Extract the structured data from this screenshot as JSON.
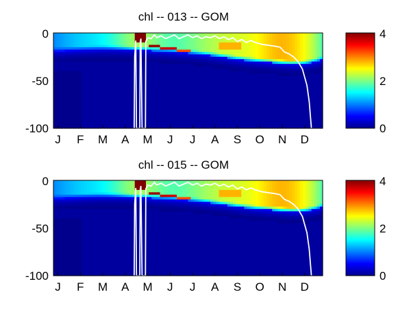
{
  "figure": {
    "background": "#ffffff"
  },
  "chart_data": [
    {
      "type": "heatmap",
      "title": "chl -- 013 -- GOM",
      "xlabel": "",
      "ylabel": "",
      "x_tick_labels": [
        "J",
        "F",
        "M",
        "A",
        "M",
        "J",
        "J",
        "A",
        "S",
        "O",
        "N",
        "D"
      ],
      "y_ticks": [
        0,
        -50,
        -100
      ],
      "y_tick_labels": [
        "0",
        "-50",
        "-100"
      ],
      "ylim": [
        -100,
        0
      ],
      "xlim_months": [
        0,
        12
      ],
      "grid": false,
      "colormap": "jet",
      "clim": [
        0,
        4
      ],
      "colorbar": {
        "ticks": [
          0,
          2,
          4
        ],
        "tick_labels": [
          "0",
          "2",
          "4"
        ]
      },
      "bloom_spikes": [
        {
          "start": 3.65,
          "end": 4.15,
          "top": 0,
          "bottom": -9,
          "value": 4
        },
        {
          "start": 4.2,
          "end": 4.7,
          "top": -12,
          "bottom": -15,
          "value": 3.9
        },
        {
          "start": 4.7,
          "end": 5.5,
          "top": -15,
          "bottom": -18,
          "value": 3.7
        },
        {
          "start": 5.5,
          "end": 6.1,
          "top": -17,
          "bottom": -20,
          "value": 3.2
        },
        {
          "start": 7.4,
          "end": 8.4,
          "top": -10,
          "bottom": -18,
          "value": 2.8
        }
      ],
      "contour": [
        [
          3.6,
          -100
        ],
        [
          3.62,
          -25
        ],
        [
          3.67,
          -8
        ],
        [
          3.7,
          -100
        ],
        [
          3.85,
          -100
        ],
        [
          3.87,
          -10
        ],
        [
          3.9,
          -6
        ],
        [
          3.95,
          -100
        ],
        [
          4.1,
          -100
        ],
        [
          4.12,
          -9
        ],
        [
          4.2,
          -5
        ],
        [
          4.35,
          -6
        ],
        [
          4.5,
          -2
        ],
        [
          4.6,
          -5
        ],
        [
          4.8,
          -3
        ],
        [
          5.0,
          -6
        ],
        [
          5.2,
          -4
        ],
        [
          5.4,
          -2
        ],
        [
          5.6,
          -6
        ],
        [
          5.8,
          -4
        ],
        [
          6.0,
          -2
        ],
        [
          6.2,
          -5
        ],
        [
          6.4,
          -3
        ],
        [
          6.6,
          -6
        ],
        [
          6.8,
          -4
        ],
        [
          7.0,
          -5
        ],
        [
          7.2,
          -3
        ],
        [
          7.4,
          -6
        ],
        [
          7.6,
          -4
        ],
        [
          7.8,
          -7
        ],
        [
          8.0,
          -5
        ],
        [
          8.2,
          -9
        ],
        [
          8.4,
          -7
        ],
        [
          8.6,
          -10
        ],
        [
          8.8,
          -8
        ],
        [
          9.0,
          -10
        ],
        [
          9.3,
          -12
        ],
        [
          9.6,
          -13
        ],
        [
          9.9,
          -14
        ],
        [
          10.1,
          -15
        ],
        [
          10.3,
          -20
        ],
        [
          10.5,
          -22
        ],
        [
          10.7,
          -25
        ],
        [
          10.9,
          -30
        ],
        [
          11.1,
          -38
        ],
        [
          11.3,
          -55
        ],
        [
          11.4,
          -72
        ],
        [
          11.5,
          -100
        ]
      ]
    },
    {
      "type": "heatmap",
      "title": "chl -- 015 -- GOM",
      "xlabel": "",
      "ylabel": "",
      "x_tick_labels": [
        "J",
        "F",
        "M",
        "A",
        "M",
        "J",
        "J",
        "A",
        "S",
        "O",
        "N",
        "D"
      ],
      "y_ticks": [
        0,
        -50,
        -100
      ],
      "y_tick_labels": [
        "0",
        "-50",
        "-100"
      ],
      "ylim": [
        -100,
        0
      ],
      "xlim_months": [
        0,
        12
      ],
      "grid": false,
      "colormap": "jet",
      "clim": [
        0,
        4
      ],
      "colorbar": {
        "ticks": [
          0,
          2,
          4
        ],
        "tick_labels": [
          "0",
          "2",
          "4"
        ]
      },
      "bloom_spikes": [
        {
          "start": 3.65,
          "end": 4.15,
          "top": 0,
          "bottom": -9,
          "value": 4
        },
        {
          "start": 4.2,
          "end": 4.7,
          "top": -12,
          "bottom": -15,
          "value": 3.9
        },
        {
          "start": 4.7,
          "end": 5.5,
          "top": -15,
          "bottom": -18,
          "value": 3.7
        },
        {
          "start": 5.5,
          "end": 6.1,
          "top": -17,
          "bottom": -20,
          "value": 3.2
        },
        {
          "start": 7.4,
          "end": 8.4,
          "top": -10,
          "bottom": -18,
          "value": 2.8
        }
      ],
      "contour": [
        [
          3.6,
          -100
        ],
        [
          3.62,
          -25
        ],
        [
          3.67,
          -8
        ],
        [
          3.7,
          -100
        ],
        [
          3.85,
          -100
        ],
        [
          3.87,
          -10
        ],
        [
          3.9,
          -6
        ],
        [
          3.95,
          -100
        ],
        [
          4.1,
          -100
        ],
        [
          4.12,
          -9
        ],
        [
          4.2,
          -5
        ],
        [
          4.35,
          -6
        ],
        [
          4.5,
          -2
        ],
        [
          4.6,
          -5
        ],
        [
          4.8,
          -3
        ],
        [
          5.0,
          -6
        ],
        [
          5.2,
          -4
        ],
        [
          5.4,
          -2
        ],
        [
          5.6,
          -6
        ],
        [
          5.8,
          -4
        ],
        [
          6.0,
          -2
        ],
        [
          6.2,
          -5
        ],
        [
          6.4,
          -3
        ],
        [
          6.6,
          -6
        ],
        [
          6.8,
          -4
        ],
        [
          7.0,
          -5
        ],
        [
          7.2,
          -3
        ],
        [
          7.4,
          -6
        ],
        [
          7.6,
          -4
        ],
        [
          7.8,
          -7
        ],
        [
          8.0,
          -5
        ],
        [
          8.2,
          -9
        ],
        [
          8.4,
          -7
        ],
        [
          8.6,
          -10
        ],
        [
          8.8,
          -8
        ],
        [
          9.0,
          -10
        ],
        [
          9.3,
          -12
        ],
        [
          9.6,
          -13
        ],
        [
          9.9,
          -14
        ],
        [
          10.1,
          -15
        ],
        [
          10.3,
          -20
        ],
        [
          10.5,
          -22
        ],
        [
          10.7,
          -25
        ],
        [
          10.9,
          -30
        ],
        [
          11.1,
          -38
        ],
        [
          11.3,
          -55
        ],
        [
          11.4,
          -72
        ],
        [
          11.5,
          -100
        ]
      ]
    }
  ]
}
